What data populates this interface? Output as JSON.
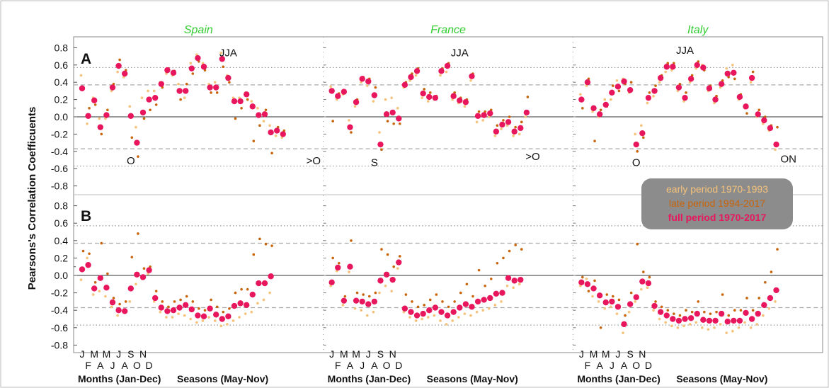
{
  "ylabel": "Pearsons's Correlation Coefficuents",
  "yticks": [
    "0.8",
    "0.6",
    "0.4",
    "0.2",
    "0.0",
    "-0.2",
    "-0.4",
    "-0.6",
    "-0.8"
  ],
  "panel_labels": [
    "A",
    "B"
  ],
  "month_ticks_top": [
    "J",
    "M",
    "M",
    "J",
    "S",
    "N"
  ],
  "month_ticks_bottom": [
    "F",
    "A",
    "J",
    "A",
    "O",
    "D"
  ],
  "xlabel_months": "Months (Jan-Dec)",
  "xlabel_seasons": "Seasons (May-Nov)",
  "legend": [
    {
      "label": "early period 1970-1993",
      "color": "#f5c27a"
    },
    {
      "label": "late period 1994-2017",
      "color": "#c8640a"
    },
    {
      "label": "full period 1970-2017",
      "color": "#e8175d"
    }
  ],
  "colors": {
    "early": "#f5c27a",
    "late": "#c8640a",
    "full": "#e8175d",
    "title": "#33cc33",
    "legend_bg": "#8c8c8c",
    "ref_dashed": "#aaaaaa",
    "ref_dotted": "#999999"
  },
  "chart_data": [
    {
      "type": "scatter",
      "title": "Spain",
      "ylim": [
        -0.85,
        0.85
      ],
      "reference_lines": {
        "dashed": [
          0.37,
          -0.37
        ],
        "dotted": [
          0.57,
          -0.57
        ]
      },
      "annotations_A": [
        {
          "text": "O",
          "x": 8,
          "y": -0.5
        },
        {
          "text": "JJA",
          "x": 24,
          "y": 0.75
        },
        {
          "text": ">O",
          "x": 38,
          "y": -0.5
        }
      ],
      "panel_A": {
        "full": [
          0.33,
          0.01,
          0.19,
          -0.12,
          0.02,
          0.34,
          0.59,
          0.5,
          0.01,
          -0.3,
          0.05,
          0.2,
          0.22,
          0.38,
          0.54,
          0.51,
          0.3,
          0.3,
          0.56,
          0.68,
          0.58,
          0.34,
          0.34,
          0.67,
          0.45,
          0.18,
          0.18,
          0.26,
          0.12,
          0.02,
          0.03,
          -0.18,
          -0.16,
          -0.2
        ],
        "early": [
          0.48,
          -0.08,
          0.22,
          -0.02,
          -0.02,
          0.3,
          0.52,
          0.46,
          0.12,
          -0.12,
          0.22,
          0.3,
          0.3,
          0.4,
          0.5,
          0.48,
          0.38,
          0.22,
          0.62,
          0.72,
          0.62,
          0.38,
          0.4,
          0.74,
          0.48,
          0.22,
          0.22,
          0.28,
          0.18,
          0.1,
          -0.05,
          -0.1,
          -0.22,
          -0.24
        ],
        "late": [
          0.34,
          0.1,
          0.14,
          -0.2,
          0.08,
          0.38,
          0.66,
          0.54,
          -0.24,
          -0.46,
          -0.02,
          0.08,
          0.14,
          0.34,
          0.56,
          0.53,
          0.2,
          0.38,
          0.5,
          0.64,
          0.54,
          0.28,
          0.28,
          0.58,
          0.4,
          -0.02,
          0.1,
          0.2,
          -0.28,
          -0.1,
          0.08,
          -0.42,
          -0.12,
          -0.16
        ]
      },
      "panel_B": {
        "full": [
          0.07,
          0.12,
          -0.15,
          -0.03,
          -0.14,
          -0.31,
          -0.4,
          -0.41,
          -0.15,
          0.01,
          -0.02,
          0.06,
          -0.26,
          -0.37,
          -0.41,
          -0.4,
          -0.37,
          -0.34,
          -0.39,
          -0.46,
          -0.47,
          -0.38,
          -0.45,
          -0.5,
          -0.47,
          -0.35,
          -0.32,
          -0.34,
          -0.22,
          -0.09,
          -0.09,
          -0.01
        ],
        "early": [
          -0.05,
          0.2,
          -0.22,
          -0.18,
          -0.24,
          -0.36,
          -0.46,
          -0.42,
          -0.3,
          -0.1,
          -0.04,
          0.02,
          -0.3,
          -0.42,
          -0.48,
          -0.48,
          -0.44,
          -0.46,
          -0.5,
          -0.54,
          -0.52,
          -0.48,
          -0.52,
          -0.58,
          -0.56,
          -0.52,
          -0.48,
          -0.44,
          -0.42,
          -0.32,
          -0.28,
          -0.2
        ],
        "late": [
          0.28,
          0.25,
          -0.08,
          0.37,
          0.02,
          -0.26,
          -0.33,
          -0.3,
          0.21,
          0.48,
          0.08,
          0.1,
          -0.18,
          -0.3,
          -0.36,
          -0.3,
          -0.28,
          -0.24,
          -0.3,
          -0.38,
          -0.4,
          -0.28,
          -0.36,
          -0.42,
          -0.38,
          -0.2,
          -0.16,
          -0.16,
          0.24,
          0.42,
          0.36,
          0.34
        ]
      }
    },
    {
      "type": "scatter",
      "title": "France",
      "ylim": [
        -0.85,
        0.85
      ],
      "reference_lines": {
        "dashed": [
          0.37,
          -0.37
        ],
        "dotted": [
          0.57,
          -0.57
        ]
      },
      "annotations_A": [
        {
          "text": "S",
          "x": 7,
          "y": -0.52
        },
        {
          "text": "JJA",
          "x": 21,
          "y": 0.75
        },
        {
          "text": ">O",
          "x": 33,
          "y": -0.45
        }
      ],
      "panel_A": {
        "full": [
          0.3,
          0.24,
          0.29,
          -0.12,
          0.17,
          0.44,
          0.41,
          0.25,
          -0.32,
          0.03,
          0.05,
          -0.02,
          0.37,
          0.46,
          0.53,
          0.27,
          0.23,
          0.22,
          0.53,
          0.59,
          0.24,
          0.19,
          0.17,
          0.47,
          0.01,
          0.02,
          0.04,
          -0.17,
          -0.09,
          -0.06,
          -0.17,
          -0.13,
          0.05
        ],
        "early": [
          0.35,
          0.2,
          0.26,
          -0.04,
          0.12,
          0.4,
          0.36,
          0.18,
          -0.18,
          0.2,
          0.22,
          0.1,
          0.34,
          0.42,
          0.48,
          0.22,
          0.18,
          0.2,
          0.48,
          0.52,
          0.2,
          0.16,
          0.12,
          0.42,
          -0.06,
          -0.04,
          0.0,
          -0.22,
          -0.14,
          -0.1,
          -0.22,
          -0.2,
          0.0
        ],
        "late": [
          -0.05,
          0.27,
          0.3,
          -0.18,
          0.2,
          0.46,
          0.44,
          0.34,
          -0.38,
          -0.05,
          -0.08,
          -0.08,
          0.4,
          0.5,
          0.56,
          0.32,
          0.28,
          0.24,
          0.56,
          0.62,
          0.28,
          0.22,
          0.2,
          0.5,
          0.06,
          0.06,
          0.08,
          -0.1,
          -0.04,
          0.0,
          -0.12,
          -0.06,
          0.23
        ]
      },
      "panel_B": {
        "full": [
          -0.08,
          0.09,
          -0.29,
          0.1,
          -0.29,
          -0.3,
          -0.33,
          -0.3,
          -0.06,
          0.01,
          -0.05,
          0.15,
          -0.38,
          -0.42,
          -0.46,
          -0.44,
          -0.4,
          -0.37,
          -0.42,
          -0.46,
          -0.42,
          -0.37,
          -0.33,
          -0.36,
          -0.3,
          -0.28,
          -0.26,
          -0.21,
          -0.2,
          -0.03,
          -0.06,
          -0.05
        ],
        "early": [
          -0.12,
          0.05,
          -0.34,
          0.04,
          -0.38,
          -0.4,
          -0.46,
          -0.42,
          -0.2,
          -0.12,
          -0.18,
          0.08,
          -0.42,
          -0.48,
          -0.52,
          -0.5,
          -0.48,
          -0.46,
          -0.52,
          -0.56,
          -0.52,
          -0.48,
          -0.44,
          -0.46,
          -0.42,
          -0.4,
          -0.38,
          -0.34,
          -0.3,
          -0.12,
          -0.14,
          -0.1
        ],
        "late": [
          0.2,
          0.14,
          -0.24,
          0.4,
          -0.2,
          -0.22,
          -0.24,
          -0.2,
          0.3,
          0.24,
          0.1,
          0.22,
          -0.22,
          -0.3,
          -0.36,
          -0.34,
          -0.28,
          -0.22,
          -0.3,
          -0.36,
          -0.3,
          -0.2,
          -0.1,
          -0.24,
          0.06,
          -0.12,
          -0.04,
          0.14,
          0.2,
          0.28,
          0.35,
          0.3
        ]
      }
    },
    {
      "type": "scatter",
      "title": "Italy",
      "ylim": [
        -0.85,
        0.85
      ],
      "reference_lines": {
        "dashed": [
          0.37,
          -0.37
        ],
        "dotted": [
          0.57,
          -0.57
        ]
      },
      "annotations_A": [
        {
          "text": "O",
          "x": 9,
          "y": -0.52
        },
        {
          "text": "JJA",
          "x": 17,
          "y": 0.78
        },
        {
          "text": "ON",
          "x": 34,
          "y": -0.48
        }
      ],
      "panel_A": {
        "full": [
          0.2,
          0.4,
          0.1,
          0.03,
          0.14,
          0.28,
          0.35,
          0.41,
          0.31,
          -0.32,
          -0.19,
          0.22,
          0.3,
          0.45,
          0.58,
          0.58,
          0.34,
          0.22,
          0.44,
          0.6,
          0.57,
          0.33,
          0.2,
          0.38,
          0.5,
          0.51,
          0.23,
          0.12,
          0.45,
          0.03,
          -0.04,
          -0.13,
          -0.32
        ],
        "early": [
          0.26,
          0.36,
          0.06,
          0.0,
          0.2,
          0.2,
          0.42,
          0.44,
          0.28,
          -0.2,
          -0.1,
          0.16,
          0.24,
          0.4,
          0.52,
          0.54,
          0.3,
          0.18,
          0.4,
          0.56,
          0.6,
          0.3,
          0.16,
          0.34,
          0.56,
          0.6,
          0.2,
          0.1,
          0.4,
          0.0,
          -0.08,
          -0.16,
          -0.38
        ],
        "late": [
          0.1,
          0.44,
          -0.28,
          0.08,
          0.12,
          0.36,
          0.3,
          0.38,
          0.4,
          -0.4,
          -0.24,
          0.28,
          0.36,
          0.48,
          0.62,
          0.62,
          0.38,
          0.28,
          0.48,
          0.64,
          0.54,
          0.36,
          0.24,
          0.42,
          0.46,
          0.44,
          0.26,
          0.04,
          0.52,
          0.08,
          0.0,
          -0.1,
          -0.12
        ]
      },
      "panel_B": {
        "full": [
          -0.08,
          -0.1,
          -0.15,
          -0.23,
          -0.31,
          -0.3,
          -0.36,
          -0.56,
          -0.33,
          -0.25,
          -0.07,
          -0.09,
          -0.35,
          -0.42,
          -0.46,
          -0.5,
          -0.52,
          -0.5,
          -0.49,
          -0.44,
          -0.51,
          -0.52,
          -0.52,
          -0.44,
          -0.53,
          -0.52,
          -0.52,
          -0.43,
          -0.5,
          -0.44,
          -0.34,
          -0.26,
          -0.17
        ],
        "early": [
          -0.12,
          -0.04,
          -0.24,
          -0.3,
          -0.38,
          -0.36,
          -0.44,
          -0.66,
          -0.42,
          -0.3,
          -0.16,
          -0.14,
          -0.4,
          -0.5,
          -0.54,
          -0.58,
          -0.6,
          -0.58,
          -0.56,
          -0.54,
          -0.6,
          -0.62,
          -0.6,
          -0.56,
          -0.66,
          -0.64,
          -0.6,
          -0.54,
          -0.6,
          -0.56,
          -0.46,
          -0.38,
          -0.3
        ],
        "late": [
          -0.02,
          -0.18,
          -0.06,
          -0.6,
          -0.22,
          -0.24,
          -0.28,
          -0.46,
          -0.2,
          0.36,
          0.04,
          -0.02,
          -0.3,
          -0.36,
          -0.4,
          -0.44,
          -0.46,
          -0.4,
          -0.42,
          -0.3,
          -0.42,
          -0.44,
          -0.42,
          -0.22,
          -0.46,
          -0.4,
          -0.4,
          -0.26,
          -0.4,
          -0.26,
          -0.08,
          0.04,
          0.3
        ]
      }
    }
  ]
}
